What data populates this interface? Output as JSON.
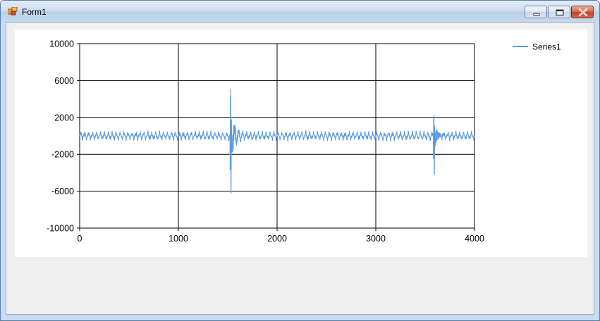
{
  "window": {
    "title": "Form1",
    "minimize_icon": "minimize-icon",
    "maximize_icon": "restore-icon",
    "close_icon": "close-icon",
    "app_icon": "form-app-icon"
  },
  "chart_data": {
    "type": "line",
    "title": "",
    "xlabel": "",
    "ylabel": "",
    "xlim": [
      0,
      4000
    ],
    "ylim": [
      -10000,
      10000
    ],
    "x_ticks": [
      0,
      1000,
      2000,
      3000,
      4000
    ],
    "y_ticks": [
      10000,
      6000,
      2000,
      -2000,
      -6000,
      -10000
    ],
    "grid": true,
    "legend_position": "top-right",
    "series": [
      {
        "name": "Series1",
        "color": "#5b9bdf",
        "description_points": {
          "baseline": 0,
          "oscillation_amplitude": 500,
          "oscillation_period": 40,
          "spikes": [
            {
              "x": 1530,
              "max": 5100,
              "min": -6200,
              "decay": 150
            },
            {
              "x": 3590,
              "max": 2300,
              "min": -4200,
              "decay": 120
            }
          ]
        }
      }
    ]
  }
}
